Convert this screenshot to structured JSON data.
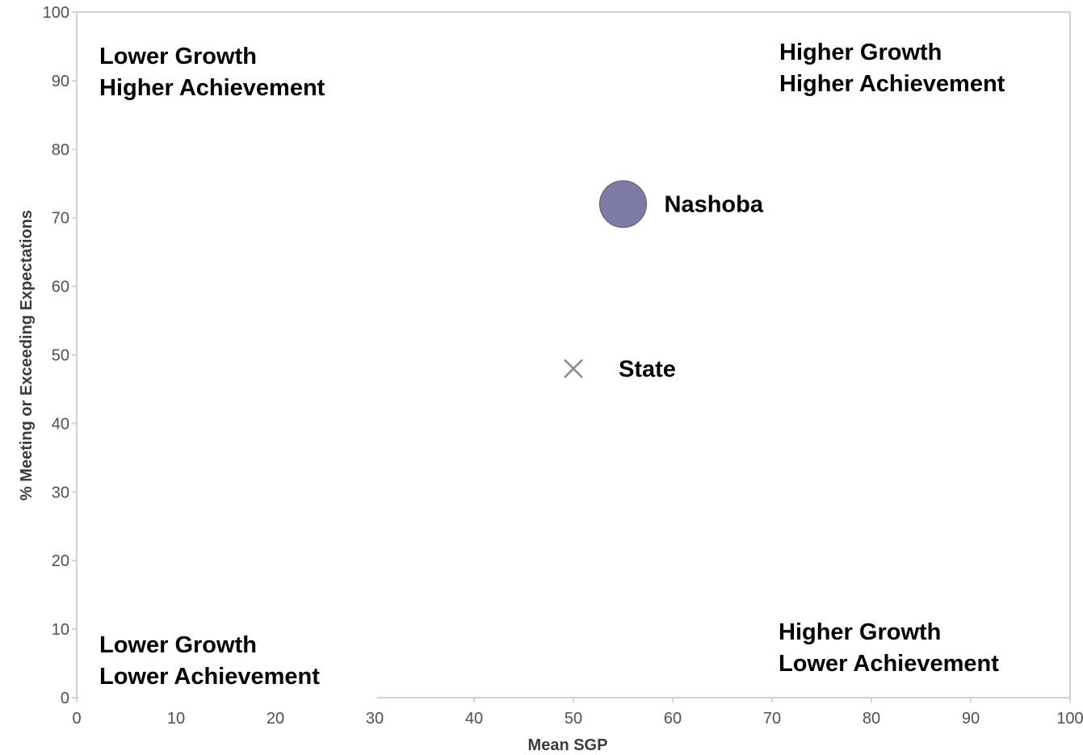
{
  "chart_data": {
    "type": "scatter",
    "xlabel": "Mean SGP",
    "ylabel": "% Meeting or Exceeding Expectations",
    "xlim": [
      0,
      100
    ],
    "ylim": [
      0,
      100
    ],
    "xticks": [
      0,
      10,
      20,
      30,
      40,
      50,
      60,
      70,
      80,
      90,
      100
    ],
    "yticks": [
      0,
      10,
      20,
      30,
      40,
      50,
      60,
      70,
      80,
      90,
      100
    ],
    "grid": false,
    "points": [
      {
        "label": "Nashoba",
        "x": 55,
        "y": 72,
        "marker": "circle",
        "color": "#7d7aa6"
      },
      {
        "label": "State",
        "x": 50,
        "y": 48,
        "marker": "x",
        "color": "#8a8a8a"
      }
    ],
    "quadrant_labels": [
      {
        "id": "top-left",
        "lines": [
          "Lower Growth",
          "Higher Achievement"
        ]
      },
      {
        "id": "top-right",
        "lines": [
          "Higher Growth",
          "Higher Achievement"
        ]
      },
      {
        "id": "bottom-left",
        "lines": [
          "Lower Growth",
          "Lower Achievement"
        ]
      },
      {
        "id": "bottom-right",
        "lines": [
          "Higher Growth",
          "Lower Achievement"
        ]
      }
    ]
  }
}
